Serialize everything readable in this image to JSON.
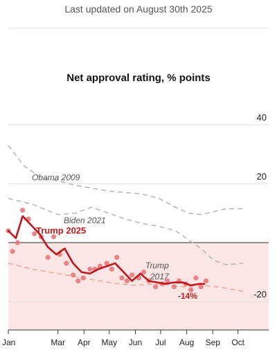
{
  "header": {
    "updated": "Last updated on August 30th 2025",
    "title": "Net approval rating, % points"
  },
  "colors": {
    "trump_line": "#c0161b",
    "trump_points": "#e8787a",
    "trump2017": "#f0a898",
    "comparison": "#b8b8b8",
    "negative_band": "#fce6e5"
  },
  "chart_data": {
    "type": "line",
    "title": "Net approval rating, % points",
    "x_unit": "day of year",
    "ylim": [
      -30,
      45
    ],
    "y_ticks": [
      40,
      20,
      -20
    ],
    "y_tick_labels": [
      "40",
      "20",
      "-20"
    ],
    "x_ticks": [
      {
        "label": "Jan",
        "day": 1
      },
      {
        "label": "Mar",
        "day": 60
      },
      {
        "label": "Apr",
        "day": 91
      },
      {
        "label": "May",
        "day": 121
      },
      {
        "label": "Jun",
        "day": 152
      },
      {
        "label": "Jul",
        "day": 182
      },
      {
        "label": "Aug",
        "day": 213
      },
      {
        "label": "Sep",
        "day": 244
      },
      {
        "label": "Oct",
        "day": 274
      }
    ],
    "series": [
      {
        "name": "Obama 2009",
        "style": "dashed",
        "x": [
          1,
          20,
          40,
          60,
          80,
          100,
          120,
          140,
          160,
          180,
          200,
          215,
          230,
          245,
          260,
          280
        ],
        "y": [
          33,
          26,
          22,
          21,
          19.5,
          18.5,
          17.5,
          17,
          16.5,
          15,
          12,
          10,
          9.5,
          10.5,
          11.5,
          11.5
        ]
      },
      {
        "name": "Biden 2021",
        "style": "dashed",
        "x": [
          1,
          30,
          60,
          80,
          100,
          120,
          140,
          160,
          180,
          200,
          215,
          230,
          245,
          260,
          280
        ],
        "y": [
          15,
          13,
          9.5,
          10,
          12,
          10,
          8,
          6.5,
          5.5,
          4,
          1,
          -2,
          -6,
          -7.5,
          -7
        ]
      },
      {
        "name": "Trump 2017",
        "style": "dashed",
        "x": [
          1,
          30,
          60,
          90,
          120,
          150,
          180,
          210,
          230,
          250,
          270,
          280
        ],
        "y": [
          -7,
          -9,
          -10.5,
          -12,
          -13.5,
          -14.5,
          -14,
          -15,
          -14.5,
          -15,
          -16,
          -16.5
        ]
      },
      {
        "name": "Trump 2025",
        "style": "solid",
        "x": [
          1,
          10,
          18,
          28,
          38,
          48,
          58,
          68,
          78,
          88,
          98,
          108,
          118,
          128,
          138,
          148,
          158,
          168,
          178,
          188,
          198,
          208,
          218,
          228,
          234
        ],
        "y": [
          4,
          1.5,
          9,
          6,
          3,
          -1.5,
          -4,
          -2,
          -7,
          -10,
          -10.5,
          -9,
          -8,
          -7,
          -10,
          -13,
          -10.5,
          -13,
          -13.5,
          -14,
          -13.5,
          -13.5,
          -14.5,
          -14,
          -14
        ]
      }
    ],
    "polls": {
      "x": [
        1,
        6,
        12,
        18,
        25,
        32,
        40,
        48,
        55,
        62,
        70,
        78,
        84,
        90,
        98,
        104,
        110,
        118,
        124,
        130,
        136,
        142,
        148,
        156,
        162,
        168,
        176,
        184,
        190,
        198,
        204,
        212,
        218,
        224,
        230,
        236
      ],
      "y": [
        4,
        -3,
        0,
        11,
        8,
        3,
        2,
        -5,
        2,
        -4,
        -7,
        -11,
        -13,
        -12,
        -9,
        -9,
        -8,
        -7,
        -9,
        -5,
        -12,
        -13,
        -11,
        -12,
        -10,
        -13,
        -15,
        -14,
        -13,
        -15,
        -13,
        -14,
        -16,
        -12,
        -15,
        -13
      ]
    },
    "annotations": {
      "obama": "Obama 2009",
      "biden": "Biden 2021",
      "trump2017_line1": "Trump",
      "trump2017_line2": "2017",
      "trump2025": "Trump 2025",
      "last_value": "-14%"
    }
  }
}
